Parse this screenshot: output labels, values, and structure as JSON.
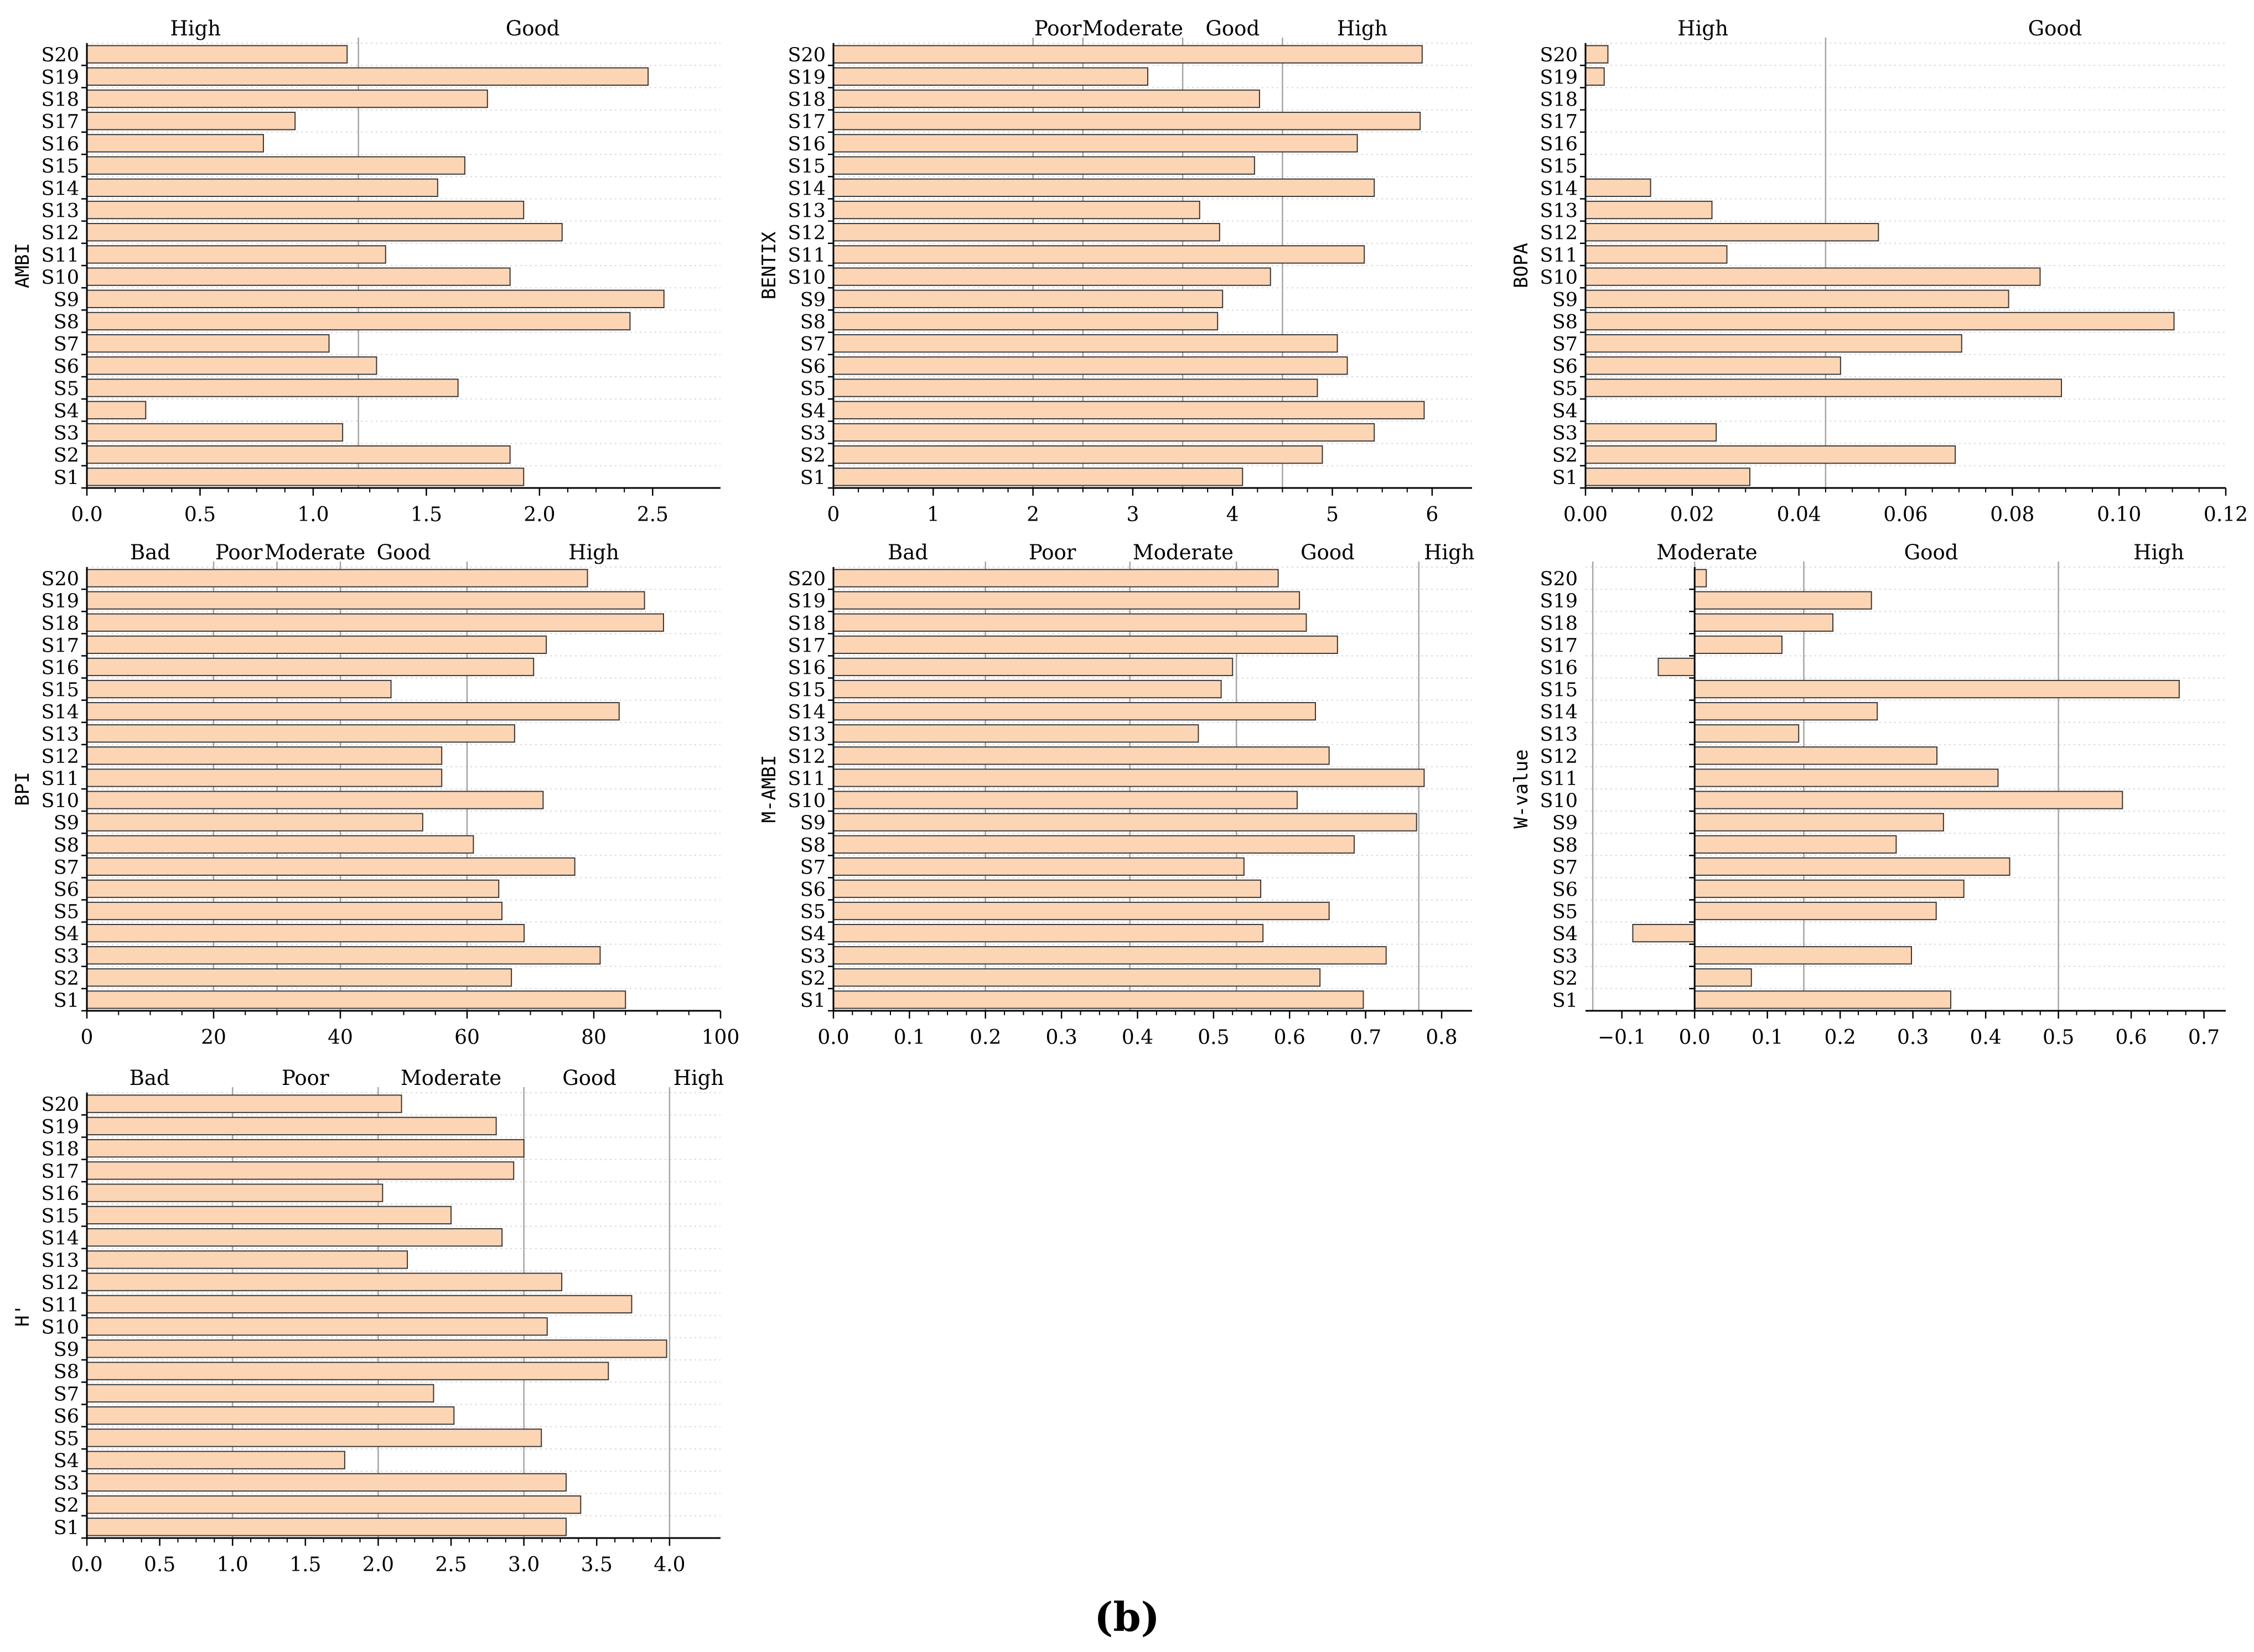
{
  "caption": "(b)",
  "colors": {
    "bar_fill": "#fcd5b5",
    "bar_stroke": "#3a3a3a",
    "threshold_line": "#a6a6a6",
    "grid_line": "#d9d9d9"
  },
  "chart_data": [
    {
      "type": "bar",
      "orientation": "horizontal",
      "ylabel": "AMBI",
      "categories": [
        "S1",
        "S2",
        "S3",
        "S4",
        "S5",
        "S6",
        "S7",
        "S8",
        "S9",
        "S10",
        "S11",
        "S12",
        "S13",
        "S14",
        "S15",
        "S16",
        "S17",
        "S18",
        "S19",
        "S20"
      ],
      "values": [
        1.93,
        1.87,
        1.13,
        0.26,
        1.64,
        1.28,
        1.07,
        2.4,
        2.55,
        1.87,
        1.32,
        2.1,
        1.93,
        1.55,
        1.67,
        0.78,
        0.92,
        1.77,
        2.48,
        1.15
      ],
      "xlim": [
        0,
        2.8
      ],
      "xticks": [
        0.0,
        0.5,
        1.0,
        1.5,
        2.0,
        2.5
      ],
      "xticklabels": [
        "0.0",
        "0.5",
        "1.0",
        "1.5",
        "2.0",
        "2.5"
      ],
      "thresholds": [
        1.2
      ],
      "class_labels": [
        {
          "text": "High",
          "at": 0.48
        },
        {
          "text": "Good",
          "at": 1.97
        }
      ],
      "grid": "horizontal-dotted"
    },
    {
      "type": "bar",
      "orientation": "horizontal",
      "ylabel": "BENTIX",
      "categories": [
        "S1",
        "S2",
        "S3",
        "S4",
        "S5",
        "S6",
        "S7",
        "S8",
        "S9",
        "S10",
        "S11",
        "S12",
        "S13",
        "S14",
        "S15",
        "S16",
        "S17",
        "S18",
        "S19",
        "S20"
      ],
      "values": [
        4.1,
        4.9,
        5.42,
        5.92,
        4.85,
        5.15,
        5.05,
        3.85,
        3.9,
        4.38,
        5.32,
        3.87,
        3.67,
        5.42,
        4.22,
        5.25,
        5.88,
        4.27,
        3.15,
        5.9
      ],
      "xlim": [
        0,
        6.4
      ],
      "xticks": [
        0,
        1,
        2,
        3,
        4,
        5,
        6
      ],
      "xticklabels": [
        "0",
        "1",
        "2",
        "3",
        "4",
        "5",
        "6"
      ],
      "thresholds": [
        2.0,
        2.5,
        3.5,
        4.5
      ],
      "class_labels": [
        {
          "text": "Poor",
          "at": 2.25
        },
        {
          "text": "Moderate",
          "at": 3.0
        },
        {
          "text": "Good",
          "at": 4.0
        },
        {
          "text": "High",
          "at": 5.3
        }
      ],
      "grid": "horizontal-dotted"
    },
    {
      "type": "bar",
      "orientation": "horizontal",
      "ylabel": "BOPA",
      "categories": [
        "S1",
        "S2",
        "S3",
        "S4",
        "S5",
        "S6",
        "S7",
        "S8",
        "S9",
        "S10",
        "S11",
        "S12",
        "S13",
        "S14",
        "S15",
        "S16",
        "S17",
        "S18",
        "S19",
        "S20"
      ],
      "values": [
        0.0308,
        0.0693,
        0.0245,
        0,
        0.0892,
        0.0478,
        0.0705,
        0.1103,
        0.0793,
        0.0852,
        0.0265,
        0.0549,
        0.0237,
        0.0122,
        0,
        0,
        0,
        0,
        0.0035,
        0.0042
      ],
      "xlim": [
        0,
        0.12
      ],
      "xticks": [
        0.0,
        0.02,
        0.04,
        0.06,
        0.08,
        0.1,
        0.12
      ],
      "xticklabels": [
        "0.00",
        "0.02",
        "0.04",
        "0.06",
        "0.08",
        "0.10",
        "0.12"
      ],
      "thresholds": [
        0.045
      ],
      "class_labels": [
        {
          "text": "High",
          "at": 0.022
        },
        {
          "text": "Good",
          "at": 0.088
        }
      ],
      "grid": "horizontal-dotted"
    },
    {
      "type": "bar",
      "orientation": "horizontal",
      "ylabel": "BPI",
      "categories": [
        "S1",
        "S2",
        "S3",
        "S4",
        "S5",
        "S6",
        "S7",
        "S8",
        "S9",
        "S10",
        "S11",
        "S12",
        "S13",
        "S14",
        "S15",
        "S16",
        "S17",
        "S18",
        "S19",
        "S20"
      ],
      "values": [
        85,
        67,
        81,
        69,
        65.5,
        65,
        77,
        61,
        53,
        72,
        56,
        56,
        67.5,
        84,
        48,
        70.5,
        72.5,
        91,
        88,
        79
      ],
      "xlim": [
        0,
        100
      ],
      "xticks": [
        0,
        20,
        40,
        60,
        80,
        100
      ],
      "xticklabels": [
        "0",
        "20",
        "40",
        "60",
        "80",
        "100"
      ],
      "thresholds": [
        20,
        30,
        40,
        60
      ],
      "class_labels": [
        {
          "text": "Bad",
          "at": 10
        },
        {
          "text": "Poor",
          "at": 24
        },
        {
          "text": "Moderate",
          "at": 36
        },
        {
          "text": "Good",
          "at": 50
        },
        {
          "text": "High",
          "at": 80
        }
      ],
      "grid": "horizontal-dotted"
    },
    {
      "type": "bar",
      "orientation": "horizontal",
      "ylabel": "M-AMBI",
      "categories": [
        "S1",
        "S2",
        "S3",
        "S4",
        "S5",
        "S6",
        "S7",
        "S8",
        "S9",
        "S10",
        "S11",
        "S12",
        "S13",
        "S14",
        "S15",
        "S16",
        "S17",
        "S18",
        "S19",
        "S20"
      ],
      "values": [
        0.697,
        0.64,
        0.727,
        0.565,
        0.652,
        0.562,
        0.54,
        0.685,
        0.767,
        0.61,
        0.777,
        0.652,
        0.48,
        0.634,
        0.51,
        0.525,
        0.663,
        0.622,
        0.613,
        0.585
      ],
      "xlim": [
        0,
        0.84
      ],
      "xticks": [
        0.0,
        0.1,
        0.2,
        0.3,
        0.4,
        0.5,
        0.6,
        0.7,
        0.8
      ],
      "xticklabels": [
        "0.0",
        "0.1",
        "0.2",
        "0.3",
        "0.4",
        "0.5",
        "0.6",
        "0.7",
        "0.8"
      ],
      "thresholds": [
        0.2,
        0.39,
        0.53,
        0.77
      ],
      "class_labels": [
        {
          "text": "Bad",
          "at": 0.098
        },
        {
          "text": "Poor",
          "at": 0.288
        },
        {
          "text": "Moderate",
          "at": 0.46
        },
        {
          "text": "Good",
          "at": 0.65
        },
        {
          "text": "High",
          "at": 0.81
        }
      ],
      "grid": "horizontal-dotted"
    },
    {
      "type": "bar",
      "orientation": "horizontal",
      "ylabel": "W-value",
      "categories": [
        "S1",
        "S2",
        "S3",
        "S4",
        "S5",
        "S6",
        "S7",
        "S8",
        "S9",
        "S10",
        "S11",
        "S12",
        "S13",
        "S14",
        "S15",
        "S16",
        "S17",
        "S18",
        "S19",
        "S20"
      ],
      "values": [
        0.352,
        0.078,
        0.298,
        -0.085,
        0.332,
        0.37,
        0.433,
        0.277,
        0.342,
        0.588,
        0.417,
        0.333,
        0.143,
        0.251,
        0.666,
        -0.05,
        0.12,
        0.19,
        0.243,
        0.016
      ],
      "xlim": [
        -0.15,
        0.73
      ],
      "xticks": [
        -0.1,
        0.0,
        0.1,
        0.2,
        0.3,
        0.4,
        0.5,
        0.6,
        0.7
      ],
      "xticklabels": [
        "−0.1",
        "0.0",
        "0.1",
        "0.2",
        "0.3",
        "0.4",
        "0.5",
        "0.6",
        "0.7"
      ],
      "thresholds": [
        -0.14,
        0.0,
        0.15,
        0.5
      ],
      "zero_line": true,
      "class_labels": [
        {
          "text": "Moderate",
          "at": 0.017
        },
        {
          "text": "Good",
          "at": 0.325
        },
        {
          "text": "High",
          "at": 0.638
        }
      ],
      "grid": "horizontal-dotted"
    },
    {
      "type": "bar",
      "orientation": "horizontal",
      "ylabel": "H'",
      "categories": [
        "S1",
        "S2",
        "S3",
        "S4",
        "S5",
        "S6",
        "S7",
        "S8",
        "S9",
        "S10",
        "S11",
        "S12",
        "S13",
        "S14",
        "S15",
        "S16",
        "S17",
        "S18",
        "S19",
        "S20"
      ],
      "values": [
        3.29,
        3.39,
        3.29,
        1.77,
        3.12,
        2.52,
        2.38,
        3.58,
        3.98,
        3.16,
        3.74,
        3.26,
        2.2,
        2.85,
        2.5,
        2.03,
        2.93,
        3.0,
        2.81,
        2.16
      ],
      "xlim": [
        0,
        4.35
      ],
      "xticks": [
        0.0,
        0.5,
        1.0,
        1.5,
        2.0,
        2.5,
        3.0,
        3.5,
        4.0
      ],
      "xticklabels": [
        "0.0",
        "0.5",
        "1.0",
        "1.5",
        "2.0",
        "2.5",
        "3.0",
        "3.5",
        "4.0"
      ],
      "thresholds": [
        1.0,
        2.0,
        3.0,
        4.0
      ],
      "class_labels": [
        {
          "text": "Bad",
          "at": 0.43
        },
        {
          "text": "Poor",
          "at": 1.5
        },
        {
          "text": "Moderate",
          "at": 2.5
        },
        {
          "text": "Good",
          "at": 3.45
        },
        {
          "text": "High",
          "at": 4.2
        }
      ],
      "grid": "horizontal-dotted"
    }
  ]
}
